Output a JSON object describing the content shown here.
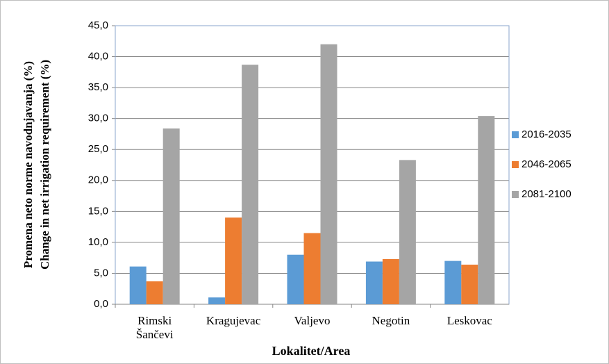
{
  "chart_data": {
    "type": "bar",
    "xlabel": "Lokalitet/Area",
    "ylabel": [
      "Promena neto norme navodnjavanja (%)",
      "Change in net irrigation requirement (%)"
    ],
    "categories": [
      "Rimski Šančevi",
      "Kragujevac",
      "Valjevo",
      "Negotin",
      "Leskovac"
    ],
    "series": [
      {
        "name": "2016-2035",
        "color": "#5b9bd5",
        "values": [
          6.1,
          1.1,
          8.0,
          6.9,
          7.0
        ]
      },
      {
        "name": "2046-2065",
        "color": "#ed7d31",
        "values": [
          3.7,
          14.0,
          11.5,
          7.3,
          6.4
        ]
      },
      {
        "name": "2081-2100",
        "color": "#a5a5a5",
        "values": [
          28.4,
          38.7,
          42.0,
          23.3,
          30.4
        ]
      }
    ],
    "ylim": [
      0,
      45
    ],
    "yticks": [
      {
        "value": 0,
        "label": "0,0"
      },
      {
        "value": 5,
        "label": "5,0"
      },
      {
        "value": 10,
        "label": "10,0"
      },
      {
        "value": 15,
        "label": "15,0"
      },
      {
        "value": 20,
        "label": "20,0"
      },
      {
        "value": 25,
        "label": "25,0"
      },
      {
        "value": 30,
        "label": "30,0"
      },
      {
        "value": 35,
        "label": "35,0"
      },
      {
        "value": 40,
        "label": "40,0"
      },
      {
        "value": 45,
        "label": "45,0"
      }
    ],
    "grid": true,
    "legend": "right"
  }
}
